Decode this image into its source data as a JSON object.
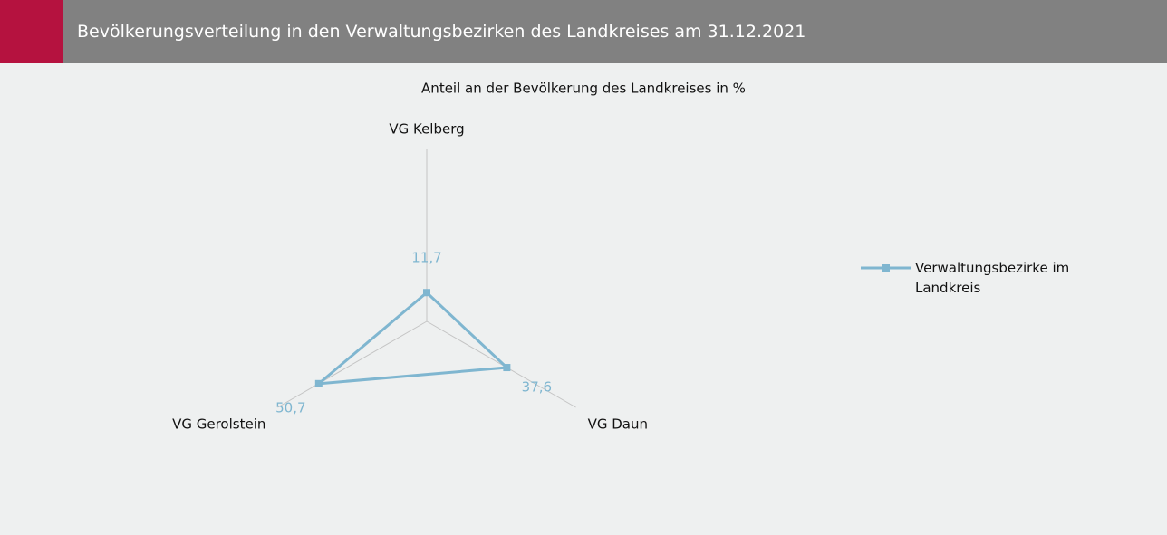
{
  "header": {
    "title": "Bevölkerungsverteilung in den Verwaltungsbezirken des Landkreises am 31.12.2021"
  },
  "chart_data": {
    "type": "radar",
    "title": "Anteil an der Bevölkerung des Landkreises in %",
    "categories": [
      "VG Kelberg",
      "VG Daun",
      "VG Gerolstein"
    ],
    "series": [
      {
        "name": "Verwaltungsbezirke im Landkreis",
        "color": "#7fb6d0",
        "values": [
          11.7,
          37.6,
          50.7
        ],
        "value_labels": [
          "11,7",
          "37,6",
          "50,7"
        ]
      }
    ],
    "rlim": [
      0,
      70
    ],
    "legend": "right"
  }
}
